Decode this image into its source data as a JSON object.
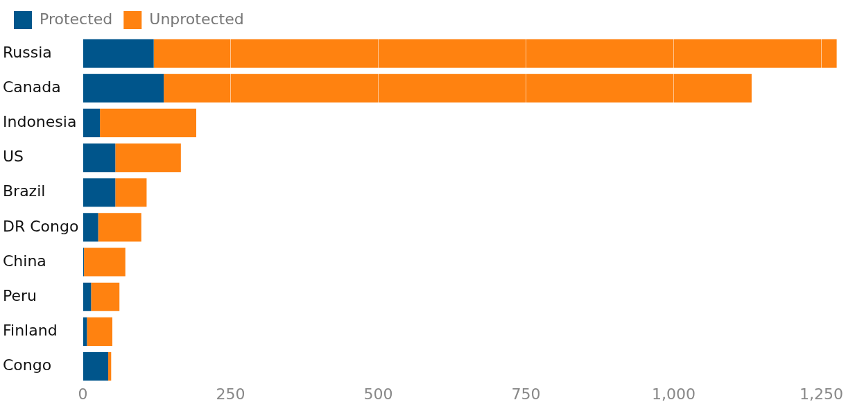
{
  "chart_data": {
    "type": "bar",
    "orientation": "horizontal",
    "stacked": true,
    "categories": [
      "Russia",
      "Canada",
      "Indonesia",
      "US",
      "Brazil",
      "DR Congo",
      "China",
      "Peru",
      "Finland",
      "Congo"
    ],
    "series": [
      {
        "name": "Protected",
        "color": "#00558b",
        "values": [
          120,
          137,
          29,
          55,
          55,
          26,
          2,
          14,
          7,
          43
        ]
      },
      {
        "name": "Unprotected",
        "color": "#ff8210",
        "values": [
          1156,
          995,
          163,
          111,
          53,
          73,
          70,
          48,
          43,
          5
        ]
      }
    ],
    "xlim": [
      0,
      1280
    ],
    "xticks": [
      0,
      250,
      500,
      750,
      {
        "value": 1000,
        "label": "1,000"
      },
      {
        "value": 1250,
        "label": "1,250"
      }
    ],
    "grid": "x",
    "legend": "top left"
  }
}
